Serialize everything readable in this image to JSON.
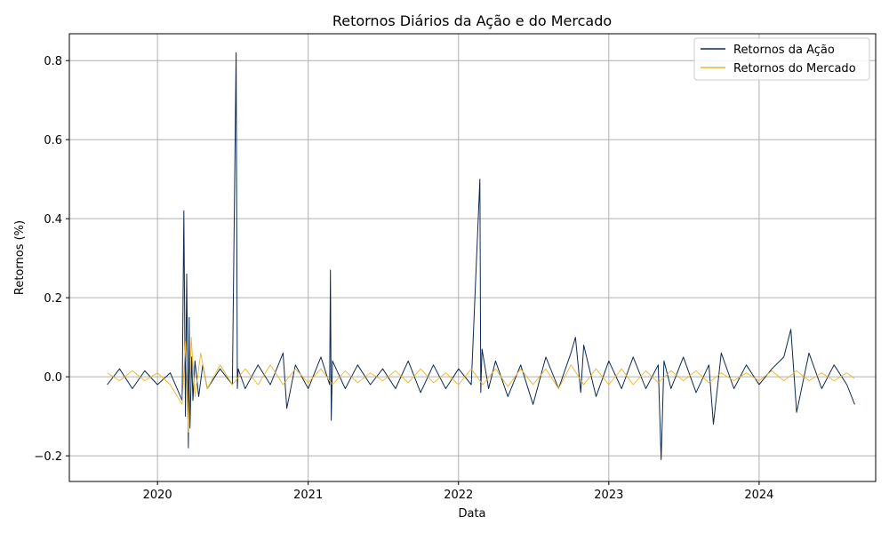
{
  "chart_data": {
    "type": "line",
    "title": "Retornos Diários da Ação e do Mercado",
    "xlabel": "Data",
    "ylabel": "Retornos (%)",
    "xlim": [
      "2019-06-01",
      "2024-10-10"
    ],
    "ylim": [
      -0.265,
      0.868
    ],
    "x_ticks": [
      "2020",
      "2021",
      "2022",
      "2023",
      "2024"
    ],
    "y_ticks": [
      -0.2,
      0.0,
      0.2,
      0.4,
      0.6,
      0.8
    ],
    "y_tick_labels": [
      "−0.2",
      "0.0",
      "0.2",
      "0.4",
      "0.6",
      "0.8"
    ],
    "grid": true,
    "legend_position": "top-right",
    "series": [
      {
        "name": "Retornos da Ação",
        "color": "#0d2a52",
        "x": [
          "2019-09-01",
          "2019-10-01",
          "2019-11-01",
          "2019-12-01",
          "2020-01-01",
          "2020-02-01",
          "2020-03-01",
          "2020-03-05",
          "2020-03-09",
          "2020-03-12",
          "2020-03-16",
          "2020-03-18",
          "2020-03-20",
          "2020-03-24",
          "2020-03-27",
          "2020-04-01",
          "2020-04-10",
          "2020-04-20",
          "2020-05-01",
          "2020-06-01",
          "2020-07-01",
          "2020-07-10",
          "2020-07-13",
          "2020-07-15",
          "2020-08-01",
          "2020-09-01",
          "2020-10-01",
          "2020-11-01",
          "2020-11-10",
          "2020-12-01",
          "2021-01-01",
          "2021-02-01",
          "2021-02-22",
          "2021-02-24",
          "2021-02-26",
          "2021-03-01",
          "2021-04-01",
          "2021-05-01",
          "2021-06-01",
          "2021-07-01",
          "2021-08-01",
          "2021-09-01",
          "2021-10-01",
          "2021-11-01",
          "2021-12-01",
          "2022-01-01",
          "2022-02-01",
          "2022-02-22",
          "2022-02-24",
          "2022-02-27",
          "2022-03-15",
          "2022-04-01",
          "2022-05-01",
          "2022-06-01",
          "2022-07-01",
          "2022-08-01",
          "2022-09-01",
          "2022-10-01",
          "2022-10-12",
          "2022-10-25",
          "2022-11-01",
          "2022-12-01",
          "2023-01-01",
          "2023-02-01",
          "2023-03-01",
          "2023-04-01",
          "2023-05-01",
          "2023-05-08",
          "2023-05-15",
          "2023-06-01",
          "2023-07-01",
          "2023-08-01",
          "2023-09-01",
          "2023-09-12",
          "2023-10-01",
          "2023-11-01",
          "2023-12-01",
          "2024-01-01",
          "2024-02-01",
          "2024-03-01",
          "2024-03-18",
          "2024-04-01",
          "2024-05-01",
          "2024-06-01",
          "2024-07-01",
          "2024-08-01",
          "2024-08-20"
        ],
        "values": [
          -0.02,
          0.02,
          -0.03,
          0.015,
          -0.02,
          0.01,
          -0.06,
          0.42,
          -0.1,
          0.26,
          -0.18,
          0.15,
          -0.13,
          0.05,
          -0.06,
          0.04,
          -0.05,
          0.03,
          -0.03,
          0.02,
          -0.02,
          0.82,
          -0.03,
          0.02,
          -0.03,
          0.03,
          -0.02,
          0.06,
          -0.08,
          0.03,
          -0.03,
          0.05,
          -0.02,
          0.27,
          -0.11,
          0.04,
          -0.03,
          0.03,
          -0.02,
          0.02,
          -0.03,
          0.04,
          -0.04,
          0.03,
          -0.03,
          0.02,
          -0.02,
          0.5,
          -0.04,
          0.07,
          -0.03,
          0.04,
          -0.05,
          0.03,
          -0.07,
          0.05,
          -0.03,
          0.06,
          0.1,
          -0.04,
          0.08,
          -0.05,
          0.04,
          -0.03,
          0.05,
          -0.03,
          0.03,
          -0.21,
          0.04,
          -0.03,
          0.05,
          -0.04,
          0.03,
          -0.12,
          0.06,
          -0.03,
          0.03,
          -0.02,
          0.02,
          0.05,
          0.12,
          -0.09,
          0.06,
          -0.03,
          0.03,
          -0.02,
          -0.07
        ]
      },
      {
        "name": "Retornos do Mercado",
        "color": "#f0b429",
        "x": [
          "2019-09-01",
          "2019-10-01",
          "2019-11-01",
          "2019-12-01",
          "2020-01-01",
          "2020-02-01",
          "2020-03-01",
          "2020-03-09",
          "2020-03-16",
          "2020-03-23",
          "2020-04-01",
          "2020-04-15",
          "2020-05-01",
          "2020-06-01",
          "2020-07-01",
          "2020-08-01",
          "2020-09-01",
          "2020-10-01",
          "2020-11-01",
          "2020-12-01",
          "2021-01-01",
          "2021-02-01",
          "2021-03-01",
          "2021-04-01",
          "2021-05-01",
          "2021-06-01",
          "2021-07-01",
          "2021-08-01",
          "2021-09-01",
          "2021-10-01",
          "2021-11-01",
          "2021-12-01",
          "2022-01-01",
          "2022-02-01",
          "2022-03-01",
          "2022-04-01",
          "2022-05-01",
          "2022-06-01",
          "2022-07-01",
          "2022-08-01",
          "2022-09-01",
          "2022-10-01",
          "2022-11-01",
          "2022-12-01",
          "2023-01-01",
          "2023-02-01",
          "2023-03-01",
          "2023-04-01",
          "2023-05-01",
          "2023-06-01",
          "2023-07-01",
          "2023-08-01",
          "2023-09-01",
          "2023-10-01",
          "2023-11-01",
          "2023-12-01",
          "2024-01-01",
          "2024-02-01",
          "2024-03-01",
          "2024-04-01",
          "2024-05-01",
          "2024-06-01",
          "2024-07-01",
          "2024-08-01",
          "2024-08-20"
        ],
        "values": [
          0.01,
          -0.01,
          0.015,
          -0.01,
          0.01,
          -0.02,
          -0.07,
          0.09,
          -0.14,
          0.1,
          -0.05,
          0.06,
          -0.03,
          0.03,
          -0.02,
          0.02,
          -0.02,
          0.03,
          -0.02,
          0.02,
          -0.015,
          0.02,
          -0.02,
          0.015,
          -0.015,
          0.01,
          -0.01,
          0.015,
          -0.015,
          0.02,
          -0.015,
          0.01,
          -0.02,
          0.02,
          -0.02,
          0.02,
          -0.025,
          0.02,
          -0.02,
          0.02,
          -0.03,
          0.03,
          -0.02,
          0.02,
          -0.02,
          0.02,
          -0.02,
          0.015,
          -0.015,
          0.015,
          -0.01,
          0.015,
          -0.015,
          0.01,
          -0.01,
          0.01,
          -0.01,
          0.015,
          -0.01,
          0.015,
          -0.01,
          0.01,
          -0.01,
          0.01,
          -0.005
        ]
      }
    ]
  }
}
